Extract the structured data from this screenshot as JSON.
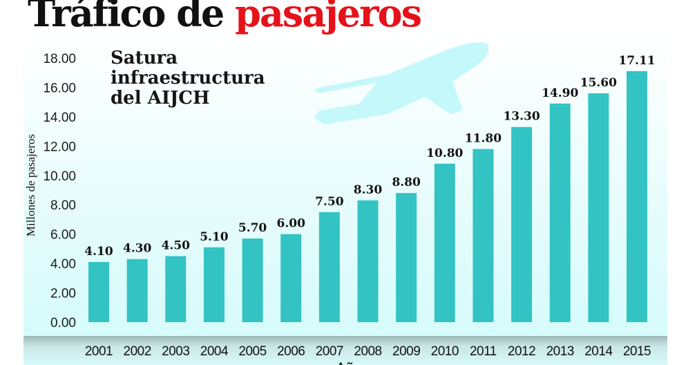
{
  "chart_data": {
    "type": "bar",
    "title_part1": "Tráfico de",
    "title_part2": "pasajeros",
    "subtitle": "Satura infraestructura del AIJCH",
    "xlabel": "Años",
    "ylabel": "Millones de pasajeros",
    "ylim": [
      0,
      18
    ],
    "yticks": [
      "0.00",
      "2.00",
      "4.00",
      "6.00",
      "8.00",
      "10.00",
      "12.00",
      "14.00",
      "16.00",
      "18.00"
    ],
    "categories": [
      "2001",
      "2002",
      "2003",
      "2004",
      "2005",
      "2006",
      "2007",
      "2008",
      "2009",
      "2010",
      "2011",
      "2012",
      "2013",
      "2014",
      "2015"
    ],
    "values": [
      4.1,
      4.3,
      4.5,
      5.1,
      5.7,
      6.0,
      7.5,
      8.3,
      8.8,
      10.8,
      11.8,
      13.3,
      14.9,
      15.6,
      17.11
    ],
    "data_labels": [
      "4.10",
      "4.30",
      "4.50",
      "5.10",
      "5.70",
      "6.00",
      "7.50",
      "8.30",
      "8.80",
      "10.80",
      "11.80",
      "13.30",
      "14.90",
      "15.60",
      "17.11"
    ],
    "grid": false,
    "legend": "none",
    "colors": {
      "bar": "#33c3c3",
      "title_accent": "#e5121a",
      "plane": "#c4f8fa"
    }
  }
}
